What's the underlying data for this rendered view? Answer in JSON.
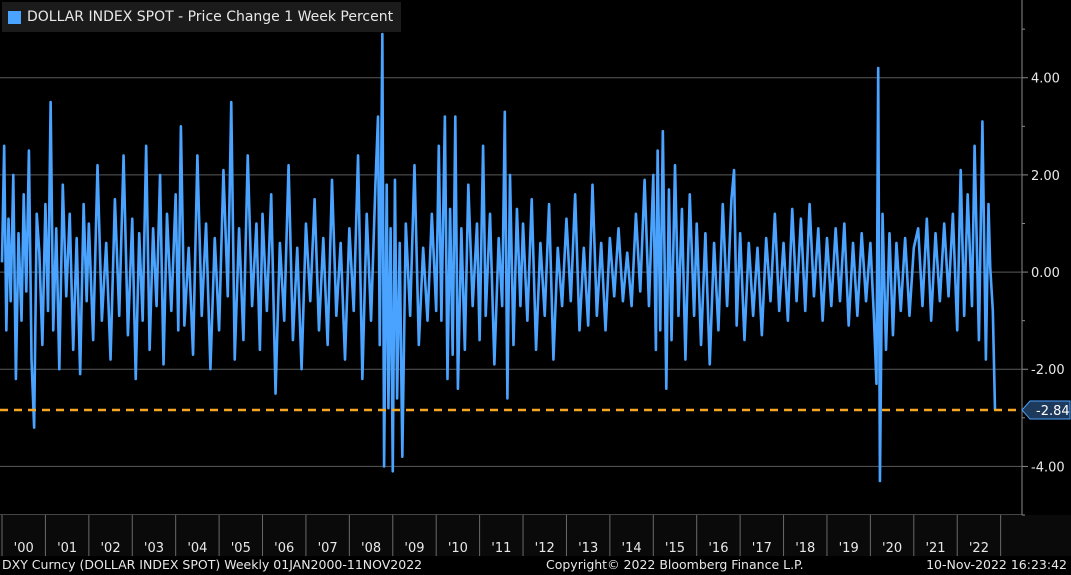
{
  "legend": {
    "label": "DOLLAR INDEX SPOT - Price Change 1 Week Percent",
    "color": "#4aa3ff"
  },
  "footer": {
    "left": "DXY Curncy (DOLLAR INDEX SPOT)  Weekly 01JAN2000-11NOV2022",
    "center": "Copyright© 2022 Bloomberg Finance L.P.",
    "right": "10-Nov-2022 16:23:42"
  },
  "chart_data": {
    "type": "line",
    "title": "DOLLAR INDEX SPOT - Price Change 1 Week Percent",
    "xlabel": "",
    "ylabel": "",
    "x_range": [
      2000.0,
      2022.87
    ],
    "ylim": [
      -5.0,
      5.6
    ],
    "y_ticks": [
      4.0,
      2.0,
      0.0,
      -2.0,
      -4.0
    ],
    "y_tick_labels": [
      "4.00",
      "2.00",
      "0.00",
      "-2.00",
      "-4.00"
    ],
    "x_tick_labels": [
      "'00",
      "'01",
      "'02",
      "'03",
      "'04",
      "'05",
      "'06",
      "'07",
      "'08",
      "'09",
      "'10",
      "'11",
      "'12",
      "'13",
      "'14",
      "'15",
      "'16",
      "'17",
      "'18",
      "'19",
      "'20",
      "'21",
      "'22"
    ],
    "grid": true,
    "axis_side": "right",
    "reference_line": {
      "value": -2.84,
      "label": "-2.84",
      "color": "#f5a623",
      "style": "dashed"
    },
    "series": [
      {
        "color": "#4aa3ff",
        "points": [
          [
            2000.0,
            0.2
          ],
          [
            2000.05,
            2.6
          ],
          [
            2000.1,
            -1.2
          ],
          [
            2000.15,
            1.1
          ],
          [
            2000.2,
            -0.6
          ],
          [
            2000.26,
            2.0
          ],
          [
            2000.32,
            -2.2
          ],
          [
            2000.38,
            0.8
          ],
          [
            2000.45,
            -1.0
          ],
          [
            2000.5,
            1.6
          ],
          [
            2000.56,
            -0.4
          ],
          [
            2000.62,
            2.5
          ],
          [
            2000.68,
            -1.8
          ],
          [
            2000.74,
            -3.2
          ],
          [
            2000.8,
            1.2
          ],
          [
            2000.86,
            0.4
          ],
          [
            2000.93,
            -1.5
          ],
          [
            2001.0,
            1.4
          ],
          [
            2001.06,
            -0.8
          ],
          [
            2001.12,
            3.5
          ],
          [
            2001.18,
            -1.2
          ],
          [
            2001.25,
            0.9
          ],
          [
            2001.32,
            -2.0
          ],
          [
            2001.4,
            1.8
          ],
          [
            2001.48,
            -0.5
          ],
          [
            2001.56,
            1.2
          ],
          [
            2001.64,
            -1.6
          ],
          [
            2001.72,
            0.7
          ],
          [
            2001.8,
            -2.1
          ],
          [
            2001.88,
            1.4
          ],
          [
            2001.95,
            -0.6
          ],
          [
            2002.0,
            1.0
          ],
          [
            2002.1,
            -1.4
          ],
          [
            2002.2,
            2.2
          ],
          [
            2002.3,
            -1.0
          ],
          [
            2002.4,
            0.6
          ],
          [
            2002.5,
            -1.8
          ],
          [
            2002.6,
            1.5
          ],
          [
            2002.7,
            -0.9
          ],
          [
            2002.8,
            2.4
          ],
          [
            2002.9,
            -1.3
          ],
          [
            2003.0,
            1.1
          ],
          [
            2003.08,
            -2.2
          ],
          [
            2003.16,
            0.8
          ],
          [
            2003.24,
            -1.0
          ],
          [
            2003.32,
            2.6
          ],
          [
            2003.4,
            -1.6
          ],
          [
            2003.48,
            0.9
          ],
          [
            2003.56,
            -0.7
          ],
          [
            2003.64,
            2.0
          ],
          [
            2003.72,
            -1.9
          ],
          [
            2003.8,
            1.2
          ],
          [
            2003.9,
            -0.8
          ],
          [
            2004.0,
            1.6
          ],
          [
            2004.06,
            -1.2
          ],
          [
            2004.12,
            3.0
          ],
          [
            2004.2,
            -1.1
          ],
          [
            2004.3,
            0.5
          ],
          [
            2004.4,
            -1.7
          ],
          [
            2004.5,
            2.4
          ],
          [
            2004.6,
            -0.9
          ],
          [
            2004.7,
            1.0
          ],
          [
            2004.8,
            -2.0
          ],
          [
            2004.9,
            0.7
          ],
          [
            2005.0,
            -1.2
          ],
          [
            2005.1,
            2.1
          ],
          [
            2005.2,
            -0.5
          ],
          [
            2005.28,
            3.5
          ],
          [
            2005.36,
            -1.8
          ],
          [
            2005.46,
            0.9
          ],
          [
            2005.56,
            -1.4
          ],
          [
            2005.66,
            2.4
          ],
          [
            2005.76,
            -0.7
          ],
          [
            2005.86,
            1.0
          ],
          [
            2005.94,
            -1.6
          ],
          [
            2006.0,
            1.2
          ],
          [
            2006.1,
            -0.8
          ],
          [
            2006.2,
            1.6
          ],
          [
            2006.3,
            -2.5
          ],
          [
            2006.4,
            0.6
          ],
          [
            2006.5,
            -1.0
          ],
          [
            2006.6,
            2.2
          ],
          [
            2006.7,
            -1.4
          ],
          [
            2006.8,
            0.5
          ],
          [
            2006.9,
            -2.0
          ],
          [
            2007.0,
            1.0
          ],
          [
            2007.1,
            -0.6
          ],
          [
            2007.2,
            1.5
          ],
          [
            2007.3,
            -1.2
          ],
          [
            2007.4,
            0.7
          ],
          [
            2007.5,
            -1.5
          ],
          [
            2007.6,
            1.9
          ],
          [
            2007.7,
            -0.9
          ],
          [
            2007.8,
            0.6
          ],
          [
            2007.9,
            -1.8
          ],
          [
            2008.0,
            0.9
          ],
          [
            2008.1,
            -0.8
          ],
          [
            2008.2,
            2.4
          ],
          [
            2008.3,
            -2.2
          ],
          [
            2008.4,
            1.2
          ],
          [
            2008.5,
            -1.0
          ],
          [
            2008.6,
            1.8
          ],
          [
            2008.66,
            3.2
          ],
          [
            2008.7,
            -1.5
          ],
          [
            2008.76,
            4.9
          ],
          [
            2008.8,
            -4.0
          ],
          [
            2008.86,
            1.8
          ],
          [
            2008.9,
            -2.8
          ],
          [
            2008.95,
            0.9
          ],
          [
            2009.0,
            -4.1
          ],
          [
            2009.05,
            1.9
          ],
          [
            2009.1,
            -2.6
          ],
          [
            2009.16,
            0.6
          ],
          [
            2009.22,
            -3.8
          ],
          [
            2009.3,
            1.0
          ],
          [
            2009.4,
            -0.9
          ],
          [
            2009.5,
            2.2
          ],
          [
            2009.6,
            -1.5
          ],
          [
            2009.7,
            0.5
          ],
          [
            2009.8,
            -1.0
          ],
          [
            2009.9,
            1.2
          ],
          [
            2010.0,
            -0.8
          ],
          [
            2010.06,
            2.6
          ],
          [
            2010.12,
            -1.0
          ],
          [
            2010.2,
            3.2
          ],
          [
            2010.26,
            -2.2
          ],
          [
            2010.32,
            1.3
          ],
          [
            2010.38,
            -1.7
          ],
          [
            2010.44,
            3.2
          ],
          [
            2010.5,
            -2.4
          ],
          [
            2010.58,
            0.9
          ],
          [
            2010.66,
            -1.6
          ],
          [
            2010.74,
            1.8
          ],
          [
            2010.84,
            -0.7
          ],
          [
            2010.94,
            1.0
          ],
          [
            2011.0,
            -1.4
          ],
          [
            2011.08,
            2.6
          ],
          [
            2011.14,
            -0.9
          ],
          [
            2011.24,
            1.2
          ],
          [
            2011.34,
            -1.9
          ],
          [
            2011.44,
            0.7
          ],
          [
            2011.52,
            -0.7
          ],
          [
            2011.58,
            3.3
          ],
          [
            2011.64,
            -2.6
          ],
          [
            2011.7,
            2.0
          ],
          [
            2011.78,
            -1.5
          ],
          [
            2011.86,
            1.3
          ],
          [
            2011.94,
            -0.7
          ],
          [
            2012.0,
            1.0
          ],
          [
            2012.1,
            -1.0
          ],
          [
            2012.2,
            1.5
          ],
          [
            2012.3,
            -1.6
          ],
          [
            2012.4,
            0.6
          ],
          [
            2012.5,
            -0.9
          ],
          [
            2012.6,
            1.4
          ],
          [
            2012.7,
            -1.8
          ],
          [
            2012.8,
            0.5
          ],
          [
            2012.9,
            -0.7
          ],
          [
            2013.0,
            1.1
          ],
          [
            2013.1,
            -0.6
          ],
          [
            2013.2,
            1.6
          ],
          [
            2013.3,
            -1.2
          ],
          [
            2013.4,
            0.5
          ],
          [
            2013.5,
            -1.1
          ],
          [
            2013.6,
            1.8
          ],
          [
            2013.7,
            -0.9
          ],
          [
            2013.8,
            0.6
          ],
          [
            2013.9,
            -1.2
          ],
          [
            2014.0,
            0.7
          ],
          [
            2014.1,
            -0.5
          ],
          [
            2014.2,
            0.9
          ],
          [
            2014.3,
            -0.6
          ],
          [
            2014.4,
            0.4
          ],
          [
            2014.5,
            -0.7
          ],
          [
            2014.6,
            1.2
          ],
          [
            2014.7,
            -0.4
          ],
          [
            2014.8,
            1.9
          ],
          [
            2014.9,
            -0.7
          ],
          [
            2015.0,
            2.0
          ],
          [
            2015.06,
            -1.6
          ],
          [
            2015.1,
            2.5
          ],
          [
            2015.16,
            -1.2
          ],
          [
            2015.22,
            2.9
          ],
          [
            2015.3,
            -2.4
          ],
          [
            2015.36,
            1.7
          ],
          [
            2015.42,
            -1.4
          ],
          [
            2015.5,
            2.2
          ],
          [
            2015.58,
            -0.9
          ],
          [
            2015.66,
            1.3
          ],
          [
            2015.74,
            -1.8
          ],
          [
            2015.84,
            1.6
          ],
          [
            2015.94,
            -0.9
          ],
          [
            2016.0,
            1.0
          ],
          [
            2016.1,
            -1.5
          ],
          [
            2016.2,
            0.8
          ],
          [
            2016.3,
            -1.9
          ],
          [
            2016.4,
            0.6
          ],
          [
            2016.5,
            -1.2
          ],
          [
            2016.6,
            1.4
          ],
          [
            2016.7,
            -0.7
          ],
          [
            2016.8,
            1.5
          ],
          [
            2016.86,
            2.1
          ],
          [
            2016.92,
            -1.1
          ],
          [
            2017.0,
            0.8
          ],
          [
            2017.1,
            -1.4
          ],
          [
            2017.2,
            0.6
          ],
          [
            2017.3,
            -0.9
          ],
          [
            2017.4,
            0.5
          ],
          [
            2017.5,
            -1.3
          ],
          [
            2017.6,
            0.7
          ],
          [
            2017.7,
            -0.6
          ],
          [
            2017.8,
            1.2
          ],
          [
            2017.9,
            -0.8
          ],
          [
            2018.0,
            0.6
          ],
          [
            2018.1,
            -1.0
          ],
          [
            2018.2,
            1.3
          ],
          [
            2018.3,
            -0.6
          ],
          [
            2018.4,
            1.1
          ],
          [
            2018.5,
            -0.8
          ],
          [
            2018.6,
            1.4
          ],
          [
            2018.7,
            -0.5
          ],
          [
            2018.8,
            0.9
          ],
          [
            2018.9,
            -1.0
          ],
          [
            2019.0,
            0.7
          ],
          [
            2019.1,
            -0.7
          ],
          [
            2019.2,
            0.9
          ],
          [
            2019.3,
            -0.6
          ],
          [
            2019.4,
            1.0
          ],
          [
            2019.5,
            -1.1
          ],
          [
            2019.6,
            0.6
          ],
          [
            2019.7,
            -0.9
          ],
          [
            2019.8,
            0.8
          ],
          [
            2019.9,
            -0.6
          ],
          [
            2020.0,
            0.6
          ],
          [
            2020.08,
            -0.9
          ],
          [
            2020.14,
            -2.3
          ],
          [
            2020.18,
            4.2
          ],
          [
            2020.22,
            -4.3
          ],
          [
            2020.28,
            1.2
          ],
          [
            2020.36,
            -1.6
          ],
          [
            2020.44,
            0.8
          ],
          [
            2020.52,
            -1.3
          ],
          [
            2020.6,
            0.6
          ],
          [
            2020.7,
            -0.8
          ],
          [
            2020.8,
            0.7
          ],
          [
            2020.9,
            -0.9
          ],
          [
            2021.0,
            0.5
          ],
          [
            2021.1,
            0.9
          ],
          [
            2021.2,
            -0.7
          ],
          [
            2021.3,
            1.1
          ],
          [
            2021.4,
            -1.0
          ],
          [
            2021.5,
            0.8
          ],
          [
            2021.6,
            -0.6
          ],
          [
            2021.7,
            1.0
          ],
          [
            2021.8,
            -0.5
          ],
          [
            2021.9,
            1.2
          ],
          [
            2022.0,
            -1.2
          ],
          [
            2022.08,
            2.1
          ],
          [
            2022.16,
            -0.9
          ],
          [
            2022.24,
            1.6
          ],
          [
            2022.34,
            -0.7
          ],
          [
            2022.4,
            2.6
          ],
          [
            2022.5,
            -1.4
          ],
          [
            2022.58,
            3.1
          ],
          [
            2022.66,
            -1.8
          ],
          [
            2022.72,
            1.4
          ],
          [
            2022.76,
            0.1
          ],
          [
            2022.82,
            -0.8
          ],
          [
            2022.87,
            -2.84
          ]
        ]
      }
    ]
  }
}
